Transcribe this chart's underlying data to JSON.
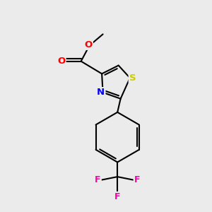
{
  "background_color": "#ebebeb",
  "bond_color": "#000000",
  "bond_width": 1.5,
  "atom_colors": {
    "N": "#0000ff",
    "S": "#cccc00",
    "O": "#ff0000",
    "F": "#ff00aa",
    "C": "#000000"
  },
  "font_size_atom": 9.5
}
